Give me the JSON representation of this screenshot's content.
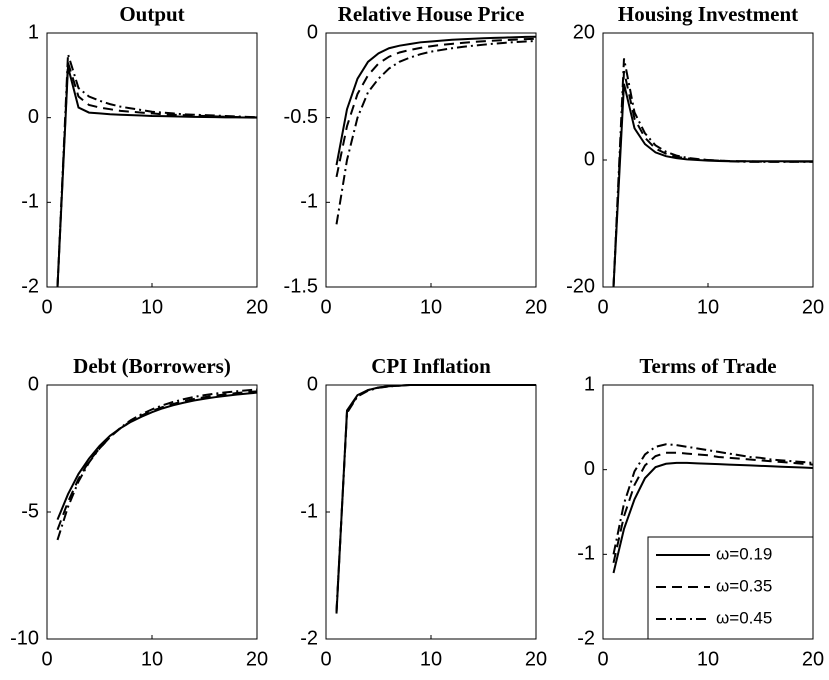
{
  "chart_data": [
    {
      "type": "line",
      "title": "Output",
      "x": [
        1,
        2,
        3,
        4,
        5,
        6,
        7,
        8,
        9,
        10,
        11,
        12,
        13,
        14,
        15,
        16,
        17,
        18,
        19,
        20
      ],
      "series": [
        {
          "color": "#000000",
          "style": "solid",
          "values": [
            -2,
            0.6,
            0.12,
            0.06,
            0.05,
            0.04,
            0.035,
            0.03,
            0.025,
            0.02,
            0.018,
            0.015,
            0.012,
            0.01,
            0.008,
            0.006,
            0.004,
            0.003,
            0.002,
            0.001
          ]
        },
        {
          "color": "#000000",
          "style": "dashed",
          "values": [
            -2,
            0.65,
            0.25,
            0.15,
            0.12,
            0.1,
            0.08,
            0.07,
            0.06,
            0.05,
            0.04,
            0.035,
            0.03,
            0.025,
            0.02,
            0.015,
            0.01,
            0.008,
            0.005,
            0.003
          ]
        },
        {
          "color": "#000000",
          "style": "dashdot",
          "values": [
            -2,
            0.75,
            0.35,
            0.25,
            0.2,
            0.16,
            0.13,
            0.11,
            0.09,
            0.07,
            0.06,
            0.05,
            0.04,
            0.035,
            0.03,
            0.025,
            0.02,
            0.015,
            0.01,
            0.005
          ]
        }
      ],
      "xlim": [
        0,
        20
      ],
      "xticks": [
        0,
        10,
        20
      ],
      "ylim": [
        -2,
        1
      ],
      "yticks": [
        -2,
        -1,
        0,
        1
      ]
    },
    {
      "type": "line",
      "title": "Relative House Price",
      "x": [
        1,
        2,
        3,
        4,
        5,
        6,
        7,
        8,
        9,
        10,
        11,
        12,
        13,
        14,
        15,
        16,
        17,
        18,
        19,
        20
      ],
      "series": [
        {
          "color": "#000000",
          "style": "solid",
          "values": [
            -0.78,
            -0.45,
            -0.27,
            -0.17,
            -0.12,
            -0.09,
            -0.075,
            -0.065,
            -0.055,
            -0.05,
            -0.045,
            -0.04,
            -0.037,
            -0.034,
            -0.031,
            -0.029,
            -0.027,
            -0.025,
            -0.023,
            -0.022
          ]
        },
        {
          "color": "#000000",
          "style": "dashed",
          "values": [
            -0.85,
            -0.55,
            -0.36,
            -0.25,
            -0.18,
            -0.14,
            -0.115,
            -0.1,
            -0.088,
            -0.078,
            -0.07,
            -0.064,
            -0.058,
            -0.053,
            -0.049,
            -0.045,
            -0.042,
            -0.039,
            -0.036,
            -0.034
          ]
        },
        {
          "color": "#000000",
          "style": "dashdot",
          "values": [
            -1.13,
            -0.75,
            -0.5,
            -0.35,
            -0.27,
            -0.21,
            -0.17,
            -0.145,
            -0.125,
            -0.11,
            -0.1,
            -0.09,
            -0.082,
            -0.075,
            -0.069,
            -0.063,
            -0.058,
            -0.054,
            -0.05,
            -0.047
          ]
        }
      ],
      "xlim": [
        0,
        20
      ],
      "xticks": [
        0,
        10,
        20
      ],
      "ylim": [
        -1.5,
        0
      ],
      "yticks": [
        -1.5,
        -1,
        -0.5,
        0
      ]
    },
    {
      "type": "line",
      "title": "Housing Investment",
      "x": [
        1,
        2,
        3,
        4,
        5,
        6,
        7,
        8,
        9,
        10,
        11,
        12,
        13,
        14,
        15,
        16,
        17,
        18,
        19,
        20
      ],
      "series": [
        {
          "color": "#000000",
          "style": "solid",
          "values": [
            -20,
            12,
            5,
            2.5,
            1.2,
            0.6,
            0.3,
            0.1,
            0,
            -0.1,
            -0.15,
            -0.2,
            -0.2,
            -0.2,
            -0.2,
            -0.2,
            -0.2,
            -0.2,
            -0.2,
            -0.2
          ]
        },
        {
          "color": "#000000",
          "style": "dashed",
          "values": [
            -20,
            14,
            6.5,
            3.5,
            1.8,
            1,
            0.5,
            0.25,
            0.1,
            0,
            -0.1,
            -0.15,
            -0.2,
            -0.2,
            -0.25,
            -0.25,
            -0.25,
            -0.25,
            -0.25,
            -0.25
          ]
        },
        {
          "color": "#000000",
          "style": "dashdot",
          "values": [
            -20,
            16,
            7.5,
            4.2,
            2.3,
            1.3,
            0.7,
            0.35,
            0.15,
            0,
            -0.1,
            -0.2,
            -0.25,
            -0.3,
            -0.3,
            -0.3,
            -0.3,
            -0.3,
            -0.3,
            -0.3
          ]
        }
      ],
      "xlim": [
        0,
        20
      ],
      "xticks": [
        0,
        10,
        20
      ],
      "ylim": [
        -20,
        20
      ],
      "yticks": [
        -20,
        0,
        20
      ]
    },
    {
      "type": "line",
      "title": "Debt (Borrowers)",
      "x": [
        1,
        2,
        3,
        4,
        5,
        6,
        7,
        8,
        9,
        10,
        11,
        12,
        13,
        14,
        15,
        16,
        17,
        18,
        19,
        20
      ],
      "series": [
        {
          "color": "#000000",
          "style": "solid",
          "values": [
            -5.3,
            -4.3,
            -3.5,
            -2.9,
            -2.4,
            -2.0,
            -1.7,
            -1.45,
            -1.25,
            -1.07,
            -0.92,
            -0.8,
            -0.7,
            -0.61,
            -0.54,
            -0.48,
            -0.43,
            -0.38,
            -0.34,
            -0.3
          ]
        },
        {
          "color": "#000000",
          "style": "dashed",
          "values": [
            -5.7,
            -4.6,
            -3.7,
            -3.0,
            -2.5,
            -2.05,
            -1.7,
            -1.42,
            -1.2,
            -1.02,
            -0.87,
            -0.75,
            -0.64,
            -0.55,
            -0.48,
            -0.42,
            -0.37,
            -0.32,
            -0.28,
            -0.25
          ]
        },
        {
          "color": "#000000",
          "style": "dashdot",
          "values": [
            -6.1,
            -4.8,
            -3.8,
            -3.05,
            -2.5,
            -2.05,
            -1.68,
            -1.38,
            -1.15,
            -0.96,
            -0.8,
            -0.67,
            -0.56,
            -0.47,
            -0.4,
            -0.34,
            -0.29,
            -0.25,
            -0.21,
            -0.18
          ]
        }
      ],
      "xlim": [
        0,
        20
      ],
      "xticks": [
        0,
        10,
        20
      ],
      "ylim": [
        -10,
        0
      ],
      "yticks": [
        -10,
        -5,
        0
      ]
    },
    {
      "type": "line",
      "title": "CPI Inflation",
      "x": [
        1,
        2,
        3,
        4,
        5,
        6,
        7,
        8,
        9,
        10,
        11,
        12,
        13,
        14,
        15,
        16,
        17,
        18,
        19,
        20
      ],
      "series": [
        {
          "color": "#000000",
          "style": "solid",
          "values": [
            -1.8,
            -0.2,
            -0.08,
            -0.04,
            -0.02,
            -0.01,
            -0.005,
            0,
            0,
            0,
            0,
            0,
            0,
            0,
            0,
            0,
            0,
            0,
            0,
            0
          ]
        },
        {
          "color": "#000000",
          "style": "dashed",
          "values": [
            -1.79,
            -0.21,
            -0.085,
            -0.04,
            -0.02,
            -0.01,
            -0.005,
            0,
            0,
            0,
            0,
            0,
            0,
            0,
            0,
            0,
            0,
            0,
            0,
            0
          ]
        },
        {
          "color": "#000000",
          "style": "dashdot",
          "values": [
            -1.78,
            -0.22,
            -0.09,
            -0.045,
            -0.022,
            -0.011,
            -0.005,
            0,
            0,
            0,
            0,
            0,
            0,
            0,
            0,
            0,
            0,
            0,
            0,
            0
          ]
        }
      ],
      "xlim": [
        0,
        20
      ],
      "xticks": [
        0,
        10,
        20
      ],
      "ylim": [
        -2,
        0
      ],
      "yticks": [
        -2,
        -1,
        0
      ]
    },
    {
      "type": "line",
      "title": "Terms of Trade",
      "x": [
        1,
        2,
        3,
        4,
        5,
        6,
        7,
        8,
        9,
        10,
        11,
        12,
        13,
        14,
        15,
        16,
        17,
        18,
        19,
        20
      ],
      "series": [
        {
          "name": "ω=0.19",
          "color": "#000000",
          "style": "solid",
          "values": [
            -1.22,
            -0.7,
            -0.35,
            -0.1,
            0.03,
            0.07,
            0.08,
            0.08,
            0.075,
            0.07,
            0.065,
            0.06,
            0.055,
            0.05,
            0.045,
            0.04,
            0.035,
            0.03,
            0.025,
            0.02
          ]
        },
        {
          "name": "ω=0.35",
          "color": "#000000",
          "style": "dashed",
          "values": [
            -1.1,
            -0.55,
            -0.18,
            0.05,
            0.16,
            0.2,
            0.2,
            0.19,
            0.18,
            0.17,
            0.15,
            0.14,
            0.13,
            0.12,
            0.11,
            0.1,
            0.09,
            0.08,
            0.07,
            0.06
          ]
        },
        {
          "name": "ω=0.45",
          "color": "#000000",
          "style": "dashdot",
          "values": [
            -1.0,
            -0.4,
            -0.02,
            0.18,
            0.27,
            0.3,
            0.29,
            0.27,
            0.25,
            0.23,
            0.21,
            0.19,
            0.17,
            0.15,
            0.14,
            0.12,
            0.11,
            0.1,
            0.09,
            0.08
          ]
        }
      ],
      "xlim": [
        0,
        20
      ],
      "xticks": [
        0,
        10,
        20
      ],
      "ylim": [
        -2,
        1
      ],
      "yticks": [
        -2,
        -1,
        0,
        1
      ],
      "legend": "lower right"
    }
  ]
}
